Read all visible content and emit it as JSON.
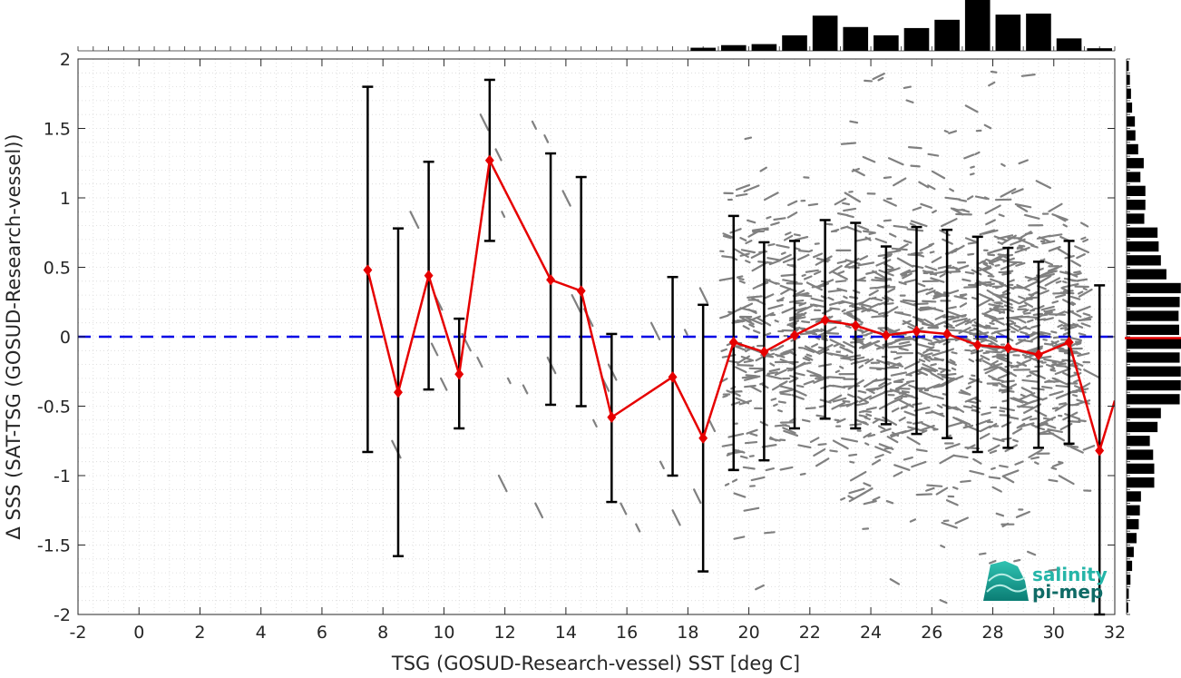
{
  "chart_data": {
    "type": "scatter",
    "xlabel": "TSG (GOSUD-Research-vessel) SST [deg C]",
    "ylabel": "Δ SSS (SAT-TSG (GOSUD-Research-vessel))",
    "xlim": [
      -2,
      32
    ],
    "ylim": [
      -2,
      2
    ],
    "x_ticks": [
      -2,
      0,
      2,
      4,
      6,
      8,
      10,
      12,
      14,
      16,
      18,
      20,
      22,
      24,
      26,
      28,
      30,
      32
    ],
    "y_ticks": [
      -2,
      -1.5,
      -1,
      -0.5,
      0,
      0.5,
      1,
      1.5,
      2
    ],
    "grid": true,
    "reference_line": {
      "y": 0,
      "color": "#0000e6",
      "style": "dashed"
    },
    "series": [
      {
        "type": "line-errorbar",
        "color": "#e60000",
        "points": [
          {
            "x": 7.5,
            "mean": 0.48,
            "low": -0.83,
            "high": 1.8
          },
          {
            "x": 8.5,
            "mean": -0.4,
            "low": -1.58,
            "high": 0.78
          },
          {
            "x": 9.5,
            "mean": 0.44,
            "low": -0.38,
            "high": 1.26
          },
          {
            "x": 10.5,
            "mean": -0.27,
            "low": -0.66,
            "high": 0.13
          },
          {
            "x": 11.5,
            "mean": 1.27,
            "low": 0.69,
            "high": 1.85
          },
          {
            "x": 13.5,
            "mean": 0.41,
            "low": -0.49,
            "high": 1.32
          },
          {
            "x": 14.5,
            "mean": 0.33,
            "low": -0.5,
            "high": 1.15
          },
          {
            "x": 15.5,
            "mean": -0.58,
            "low": -1.19,
            "high": 0.02
          },
          {
            "x": 17.5,
            "mean": -0.29,
            "low": -1.0,
            "high": 0.43
          },
          {
            "x": 18.5,
            "mean": -0.73,
            "low": -1.69,
            "high": 0.23
          },
          {
            "x": 19.5,
            "mean": -0.04,
            "low": -0.96,
            "high": 0.87
          },
          {
            "x": 20.5,
            "mean": -0.11,
            "low": -0.89,
            "high": 0.68
          },
          {
            "x": 21.5,
            "mean": 0.01,
            "low": -0.66,
            "high": 0.69
          },
          {
            "x": 22.5,
            "mean": 0.12,
            "low": -0.59,
            "high": 0.84
          },
          {
            "x": 23.5,
            "mean": 0.08,
            "low": -0.66,
            "high": 0.82
          },
          {
            "x": 24.5,
            "mean": 0.01,
            "low": -0.63,
            "high": 0.65
          },
          {
            "x": 25.5,
            "mean": 0.04,
            "low": -0.7,
            "high": 0.79
          },
          {
            "x": 26.5,
            "mean": 0.02,
            "low": -0.73,
            "high": 0.77
          },
          {
            "x": 27.5,
            "mean": -0.06,
            "low": -0.83,
            "high": 0.72
          },
          {
            "x": 28.5,
            "mean": -0.08,
            "low": -0.8,
            "high": 0.64
          },
          {
            "x": 29.5,
            "mean": -0.13,
            "low": -0.8,
            "high": 0.54
          },
          {
            "x": 30.5,
            "mean": -0.04,
            "low": -0.77,
            "high": 0.69
          },
          {
            "x": 31.5,
            "mean": -0.82,
            "low": -2.0,
            "high": 0.37
          },
          {
            "x": 32.0,
            "mean": -0.46
          }
        ]
      }
    ],
    "top_histogram": {
      "bin_centers": [
        18.5,
        19.5,
        20.5,
        21.5,
        22.5,
        23.5,
        24.5,
        25.5,
        26.5,
        27.5,
        28.5,
        29.5,
        30.5,
        31.5
      ],
      "relative_counts": [
        0.06,
        0.11,
        0.13,
        0.3,
        0.68,
        0.46,
        0.3,
        0.44,
        0.6,
        1.0,
        0.7,
        0.72,
        0.24,
        0.05
      ]
    },
    "right_histogram": {
      "bin_centers": [
        -1.95,
        -1.85,
        -1.75,
        -1.65,
        -1.55,
        -1.45,
        -1.35,
        -1.25,
        -1.15,
        -1.05,
        -0.95,
        -0.85,
        -0.75,
        -0.65,
        -0.55,
        -0.45,
        -0.35,
        -0.25,
        -0.15,
        -0.05,
        0.05,
        0.15,
        0.25,
        0.35,
        0.45,
        0.55,
        0.65,
        0.75,
        0.85,
        0.95,
        1.05,
        1.15,
        1.25,
        1.35,
        1.45,
        1.55,
        1.65,
        1.75,
        1.85,
        1.95
      ],
      "relative_counts": [
        0.03,
        0.04,
        0.07,
        0.1,
        0.13,
        0.18,
        0.22,
        0.24,
        0.26,
        0.5,
        0.5,
        0.48,
        0.42,
        0.56,
        0.62,
        0.96,
        0.98,
        0.98,
        0.96,
        1.0,
        0.95,
        0.94,
        0.96,
        0.98,
        0.72,
        0.62,
        0.58,
        0.56,
        0.32,
        0.34,
        0.34,
        0.25,
        0.31,
        0.21,
        0.16,
        0.15,
        0.1,
        0.08,
        0.06,
        0.04
      ],
      "mean_line": {
        "y": -0.01,
        "color": "#e60000"
      }
    },
    "logo": {
      "line1": "salinity",
      "line2": "pi-mep",
      "color1": "#25b5a8",
      "color2": "#0f6b66"
    }
  }
}
